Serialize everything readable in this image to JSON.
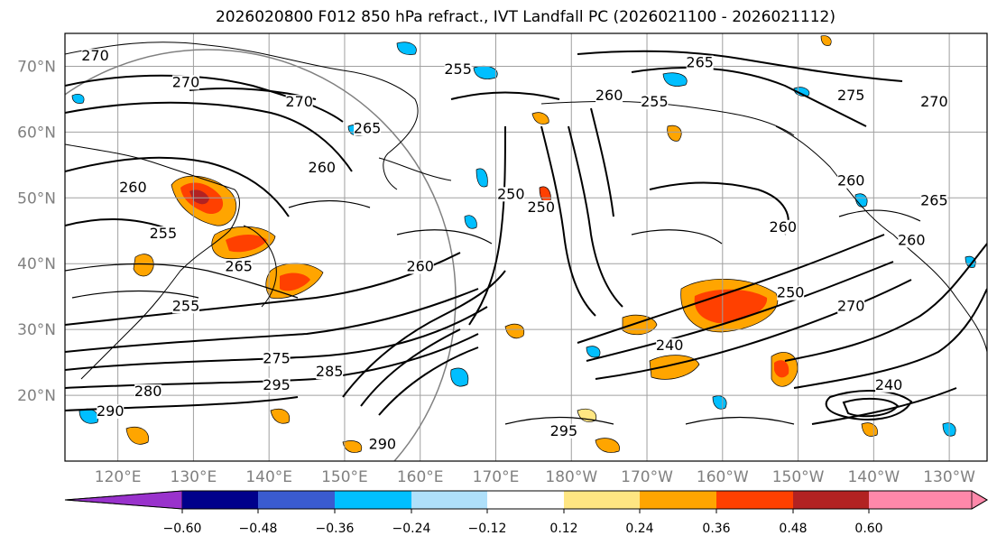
{
  "title": "2026020800 F012 850 hPa refract., IVT Landfall PC (2026021100 - 2026021112)",
  "map": {
    "lat_labels": [
      "70°N",
      "60°N",
      "50°N",
      "40°N",
      "30°N",
      "20°N"
    ],
    "lon_labels": [
      "120°E",
      "130°E",
      "140°E",
      "150°E",
      "160°E",
      "170°E",
      "180°W",
      "170°W",
      "160°W",
      "150°W",
      "140°W",
      "130°W",
      "120°W"
    ],
    "extent": {
      "lon_min": 113,
      "lon_max": 235,
      "lat_min": 10,
      "lat_max": 75
    },
    "contour_labels": [
      {
        "text": "270",
        "lon": 117,
        "lat": 71
      },
      {
        "text": "270",
        "lon": 129,
        "lat": 67
      },
      {
        "text": "270",
        "lon": 144,
        "lat": 64
      },
      {
        "text": "255",
        "lon": 165,
        "lat": 69
      },
      {
        "text": "265",
        "lon": 197,
        "lat": 70
      },
      {
        "text": "260",
        "lon": 185,
        "lat": 65
      },
      {
        "text": "255",
        "lon": 191,
        "lat": 64
      },
      {
        "text": "275",
        "lon": 217,
        "lat": 65
      },
      {
        "text": "270",
        "lon": 228,
        "lat": 64
      },
      {
        "text": "265",
        "lon": 153,
        "lat": 60
      },
      {
        "text": "260",
        "lon": 147,
        "lat": 54
      },
      {
        "text": "260",
        "lon": 122,
        "lat": 51
      },
      {
        "text": "255",
        "lon": 126,
        "lat": 44
      },
      {
        "text": "265",
        "lon": 136,
        "lat": 39
      },
      {
        "text": "260",
        "lon": 160,
        "lat": 39
      },
      {
        "text": "255",
        "lon": 129,
        "lat": 33
      },
      {
        "text": "250",
        "lon": 172,
        "lat": 50
      },
      {
        "text": "250",
        "lon": 176,
        "lat": 48
      },
      {
        "text": "260",
        "lon": 217,
        "lat": 52
      },
      {
        "text": "265",
        "lon": 228,
        "lat": 49
      },
      {
        "text": "260",
        "lon": 208,
        "lat": 45
      },
      {
        "text": "260",
        "lon": 225,
        "lat": 43
      },
      {
        "text": "250",
        "lon": 209,
        "lat": 35
      },
      {
        "text": "270",
        "lon": 217,
        "lat": 33
      },
      {
        "text": "240",
        "lon": 193,
        "lat": 27
      },
      {
        "text": "275",
        "lon": 141,
        "lat": 25
      },
      {
        "text": "285",
        "lon": 148,
        "lat": 23
      },
      {
        "text": "280",
        "lon": 124,
        "lat": 20
      },
      {
        "text": "295",
        "lon": 141,
        "lat": 21
      },
      {
        "text": "290",
        "lon": 119,
        "lat": 17
      },
      {
        "text": "295",
        "lon": 179,
        "lat": 14
      },
      {
        "text": "290",
        "lon": 155,
        "lat": 12
      },
      {
        "text": "240",
        "lon": 222,
        "lat": 21
      }
    ]
  },
  "colorbar": {
    "colors": [
      "#9932cc",
      "#00008b",
      "#3a5bd0",
      "#00bfff",
      "#afe0fa",
      "#ffffff",
      "#ffe682",
      "#ffa500",
      "#ff4000",
      "#b22222",
      "#ff88aa"
    ],
    "ticks": [
      "−0.60",
      "−0.48",
      "−0.36",
      "−0.24",
      "−0.12",
      "0.12",
      "0.24",
      "0.36",
      "0.48",
      "0.60"
    ]
  }
}
